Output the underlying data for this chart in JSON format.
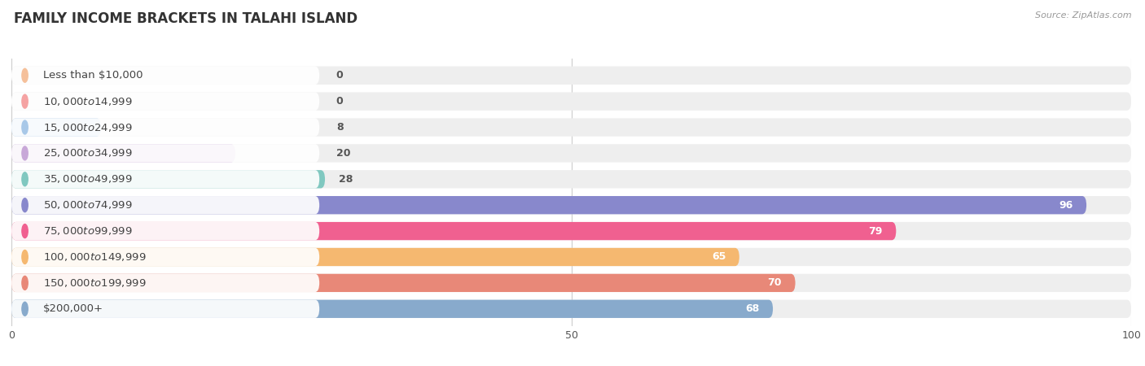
{
  "title": "FAMILY INCOME BRACKETS IN TALAHI ISLAND",
  "source": "Source: ZipAtlas.com",
  "categories": [
    "Less than $10,000",
    "$10,000 to $14,999",
    "$15,000 to $24,999",
    "$25,000 to $34,999",
    "$35,000 to $49,999",
    "$50,000 to $74,999",
    "$75,000 to $99,999",
    "$100,000 to $149,999",
    "$150,000 to $199,999",
    "$200,000+"
  ],
  "values": [
    0,
    0,
    8,
    20,
    28,
    96,
    79,
    65,
    70,
    68
  ],
  "bar_colors": [
    "#F5C09A",
    "#F5A3A3",
    "#A8C8E8",
    "#C8A8D8",
    "#80C8C0",
    "#8888CC",
    "#F06090",
    "#F5B870",
    "#E88878",
    "#88AACC"
  ],
  "bg_color": "#ffffff",
  "bar_bg_color": "#eeeeee",
  "label_bg_color": "#ffffff",
  "xlim": [
    0,
    100
  ],
  "xticks": [
    0,
    50,
    100
  ],
  "title_fontsize": 12,
  "label_fontsize": 9.5,
  "value_fontsize": 9
}
